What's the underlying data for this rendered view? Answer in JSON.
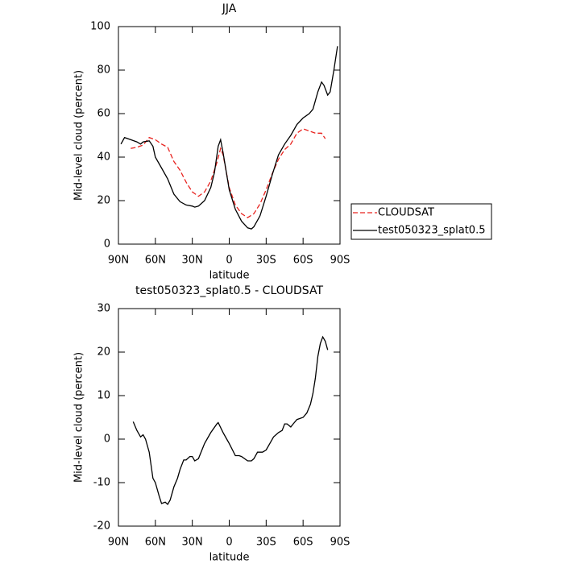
{
  "chart_data": [
    {
      "type": "line",
      "title": "JJA",
      "xlabel": "latitude",
      "ylabel": "Mid-level cloud (percent)",
      "xlim": [
        90,
        -90
      ],
      "xticks": [
        {
          "value": 90,
          "label": "90N"
        },
        {
          "value": 60,
          "label": "60N"
        },
        {
          "value": 30,
          "label": "30N"
        },
        0,
        {
          "value": -30,
          "label": "30S"
        },
        {
          "value": -60,
          "label": "60S"
        },
        {
          "value": -90,
          "label": "90S"
        }
      ],
      "ylim": [
        0,
        100
      ],
      "yticks": [
        0,
        20,
        40,
        60,
        80,
        100
      ],
      "legend": "right",
      "series": [
        {
          "name": "CLOUDSAT",
          "color": "#e8231f",
          "style": "dashed",
          "x": [
            80,
            75,
            70,
            65,
            60,
            55,
            50,
            45,
            40,
            35,
            30,
            25,
            20,
            15,
            10,
            7,
            5,
            0,
            -5,
            -10,
            -15,
            -20,
            -25,
            -30,
            -35,
            -40,
            -45,
            -50,
            -55,
            -60,
            -65,
            -70,
            -75,
            -78
          ],
          "values": [
            44,
            44.5,
            45.5,
            49,
            48,
            46,
            44.5,
            38,
            34,
            28.5,
            24,
            22,
            24,
            29,
            37.5,
            44,
            41,
            26,
            18,
            14,
            12.2,
            14,
            18.5,
            25,
            32.5,
            39,
            43.5,
            46,
            51,
            53,
            52,
            51,
            51,
            48.5
          ]
        },
        {
          "name": "test050323_splat0.5",
          "color": "#000000",
          "style": "solid",
          "x": [
            88,
            85,
            80,
            75,
            72,
            70,
            65,
            62,
            60,
            55,
            50,
            45,
            40,
            35,
            30,
            28,
            25,
            20,
            15,
            12,
            9,
            7,
            5,
            0,
            -5,
            -10,
            -15,
            -18,
            -20,
            -25,
            -30,
            -35,
            -40,
            -45,
            -50,
            -55,
            -60,
            -65,
            -68,
            -72,
            -75,
            -77,
            -80,
            -82,
            -85,
            -88
          ],
          "values": [
            46,
            49,
            48,
            47,
            46,
            47,
            47.5,
            45,
            40,
            35,
            30,
            23,
            19.5,
            18,
            17.5,
            17,
            17.5,
            20,
            26,
            33,
            45,
            48,
            42,
            25,
            16,
            10.5,
            7.5,
            7,
            8,
            13,
            22,
            32,
            41,
            46,
            50,
            55,
            58,
            60,
            62,
            70,
            74.5,
            73,
            68.5,
            70,
            80,
            91
          ]
        }
      ]
    },
    {
      "type": "line",
      "title": "test050323_splat0.5 - CLOUDSAT",
      "xlabel": "latitude",
      "ylabel": "Mid-level cloud (percent)",
      "xlim": [
        90,
        -90
      ],
      "xticks": [
        {
          "value": 90,
          "label": "90N"
        },
        {
          "value": 60,
          "label": "60N"
        },
        {
          "value": 30,
          "label": "30N"
        },
        0,
        {
          "value": -30,
          "label": "30S"
        },
        {
          "value": -60,
          "label": "60S"
        },
        {
          "value": -90,
          "label": "90S"
        }
      ],
      "ylim": [
        -20,
        30
      ],
      "yticks": [
        -20,
        -10,
        0,
        10,
        20,
        30
      ],
      "series": [
        {
          "color": "#000000",
          "style": "solid",
          "x": [
            78,
            75,
            72,
            70,
            68,
            65,
            62,
            60,
            57,
            55,
            52,
            50,
            48,
            45,
            42,
            40,
            37,
            35,
            32,
            30,
            28,
            25,
            20,
            15,
            10,
            9,
            5,
            2,
            0,
            -5,
            -8,
            -10,
            -15,
            -18,
            -20,
            -23,
            -27,
            -30,
            -33,
            -36,
            -40,
            -43,
            -45,
            -47,
            -50,
            -52,
            -55,
            -60,
            -63,
            -66,
            -68,
            -70,
            -72,
            -74,
            -76,
            -78,
            -80
          ],
          "values": [
            4,
            2,
            0.5,
            1,
            0,
            -3,
            -9,
            -10,
            -13,
            -14.8,
            -14.5,
            -15,
            -14,
            -11,
            -9,
            -7,
            -4.8,
            -4.8,
            -4,
            -4,
            -5,
            -4.5,
            -1,
            1.5,
            3.5,
            3.8,
            1.5,
            0,
            -1,
            -3.8,
            -3.8,
            -4,
            -5,
            -5,
            -4.5,
            -3,
            -3,
            -2.5,
            -1,
            0.5,
            1.5,
            2,
            3.5,
            3.5,
            2.8,
            3.5,
            4.5,
            5,
            6,
            8,
            10.5,
            14,
            19,
            22,
            23.5,
            22.5,
            20.5
          ]
        }
      ]
    }
  ]
}
